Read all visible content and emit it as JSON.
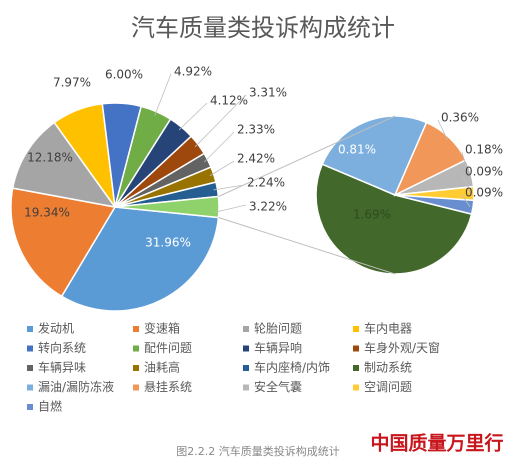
{
  "chart_data": {
    "type": "pie-of-pie",
    "title": "汽车质量类投诉构成统计",
    "pies": [
      {
        "categories": [
          "发动机",
          "变速箱",
          "轮胎问题",
          "车内电器",
          "转向系统",
          "配件问题",
          "车辆异响",
          "车身外观/天窗",
          "车辆异味",
          "油耗高",
          "车内座椅/内饰"
        ],
        "colors": [
          "#5b9bd5",
          "#ed7d31",
          "#a5a5a5",
          "#ffc000",
          "#4472c4",
          "#70ad47",
          "#264478",
          "#9e480e",
          "#636363",
          "#997300",
          "#255e91"
        ],
        "values": [
          31.96,
          19.34,
          12.18,
          7.97,
          6.0,
          4.92,
          4.12,
          3.31,
          2.33,
          2.42,
          2.24
        ],
        "value_labels": [
          "31.96%",
          "19.34%",
          "12.18%",
          "7.97%",
          "6.00%",
          "4.92%",
          "4.12%",
          "3.31%",
          "2.33%",
          "2.42%",
          "2.24%"
        ],
        "other_value": 3.22,
        "other_value_label": "3.22%",
        "other_color": "#8fd16b"
      },
      {
        "categories": [
          "制动系统",
          "漏油/漏防冻液",
          "悬挂系统",
          "安全气囊",
          "空调问题",
          "自燃"
        ],
        "colors": [
          "#43682b",
          "#7cafdd",
          "#f1975a",
          "#b7b7b7",
          "#ffcd33",
          "#698ed0"
        ],
        "values": [
          1.69,
          0.81,
          0.36,
          0.18,
          0.09,
          0.09
        ],
        "value_labels": [
          "1.69%",
          "0.81%",
          "0.36%",
          "0.18%",
          "0.09%",
          "0.09%"
        ]
      }
    ],
    "figure_caption": "图2.2.2  汽车质量类投诉构成统计",
    "watermark": "中国质量万里行"
  }
}
